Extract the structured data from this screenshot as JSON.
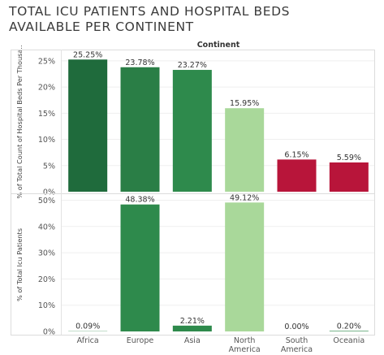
{
  "title": "TOTAL ICU PATIENTS AND HOSPITAL BEDS\nAVAILABLE PER CONTINENT",
  "chart_data": [
    {
      "type": "bar",
      "header": "Continent",
      "categories": [
        "Africa",
        "Europe",
        "Asia",
        "North\nAmerica",
        "South\nAmerica",
        "Oceania"
      ],
      "ylabel": "% of Total Count of Hospital Beds Per Thousa..",
      "ylim": [
        0,
        27
      ],
      "yticks": [
        "0%",
        "5%",
        "10%",
        "15%",
        "20%",
        "25%"
      ],
      "values": [
        25.25,
        23.78,
        23.27,
        15.95,
        6.15,
        5.59
      ],
      "data_labels": [
        "25.25%",
        "23.78%",
        "23.27%",
        "15.95%",
        "6.15%",
        "5.59%"
      ],
      "colors": [
        "#1f6b3c",
        "#2a7e46",
        "#2e8a4c",
        "#a9d89a",
        "#b8153a",
        "#b8153a"
      ]
    },
    {
      "type": "bar",
      "categories": [
        "Africa",
        "Europe",
        "Asia",
        "North\nAmerica",
        "South\nAmerica",
        "Oceania"
      ],
      "ylabel": "% of Total Icu Patients",
      "ylim": [
        0,
        52
      ],
      "yticks": [
        "0%",
        "10%",
        "20%",
        "30%",
        "40%",
        "50%"
      ],
      "values": [
        0.09,
        48.38,
        2.21,
        49.12,
        0.0,
        0.2
      ],
      "data_labels": [
        "0.09%",
        "48.38%",
        "2.21%",
        "49.12%",
        "0.00%",
        "0.20%"
      ],
      "colors": [
        "#2e8a4c",
        "#2e8a4c",
        "#2e8a4c",
        "#a9d89a",
        "#2e8a4c",
        "#2e8a4c"
      ]
    }
  ]
}
